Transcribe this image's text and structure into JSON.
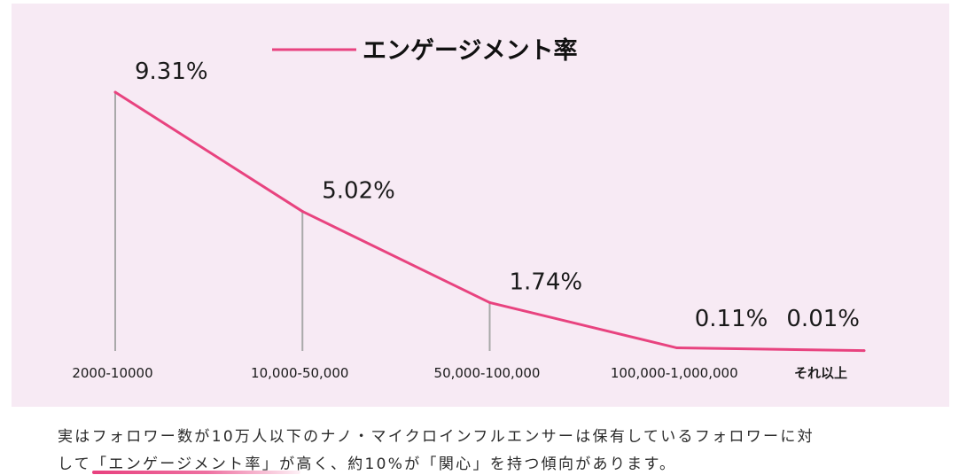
{
  "chart_data": {
    "type": "line",
    "title": "エンゲージメント率",
    "legend": "top-center",
    "categories": [
      "2000-10000",
      "10,000-50,000",
      "50,000-100,000",
      "100,000-1,000,000",
      "それ以上"
    ],
    "series": [
      {
        "name": "エンゲージメント率",
        "values": [
          9.31,
          5.02,
          1.74,
          0.11,
          0.01
        ],
        "labels": [
          "9.31%",
          "5.02%",
          "1.74%",
          "0.11%",
          "0.01%"
        ]
      }
    ],
    "ylim": [
      0,
      9.31
    ],
    "line_color": "#e8437f",
    "dropline_color": "#a9a9a9",
    "background": "#f7eaf4"
  },
  "caption": {
    "line1": "実はフォロワー数が10万人以下のナノ・マイクロインフルエンサーは保有しているフォロワーに対",
    "line2_pre": "して",
    "line2_highlight": "「エンゲージメント率」",
    "line2_post": "が高く、約10%が「関心」を持つ傾向があります。"
  }
}
